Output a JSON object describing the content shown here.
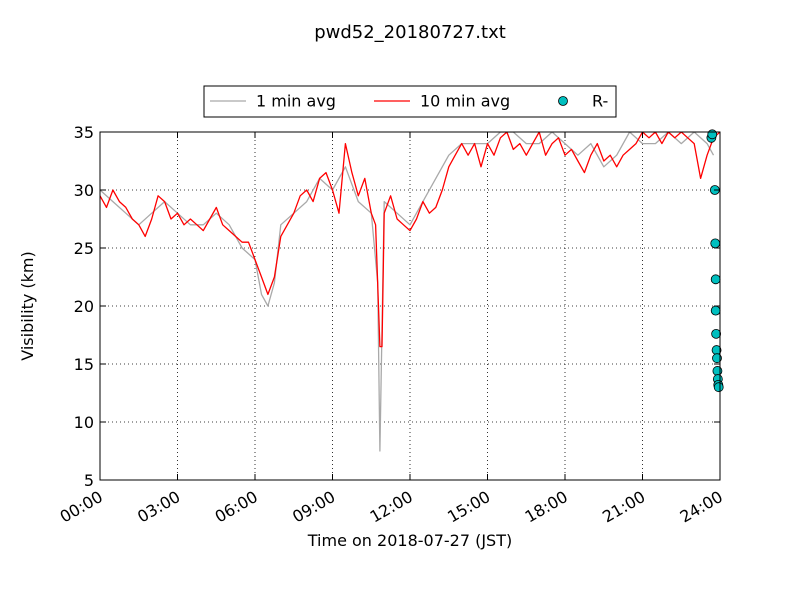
{
  "chart_data": {
    "type": "line",
    "title": "pwd52_20180727.txt",
    "xlabel": "Time on 2018-07-27 (JST)",
    "ylabel": "Visibility (km)",
    "xlim": [
      "00:00",
      "24:00"
    ],
    "ylim": [
      5,
      35
    ],
    "grid": true,
    "legend_placement": "top-center",
    "x_ticks": [
      "00:00",
      "03:00",
      "06:00",
      "09:00",
      "12:00",
      "15:00",
      "18:00",
      "21:00",
      "24:00"
    ],
    "y_ticks": [
      5,
      10,
      15,
      20,
      25,
      30,
      35
    ],
    "series": [
      {
        "name": "1 min avg",
        "color": "#a9a9a9",
        "kind": "line",
        "x": [
          "00:00",
          "00:30",
          "01:00",
          "01:30",
          "02:00",
          "02:30",
          "03:00",
          "03:30",
          "04:00",
          "04:30",
          "05:00",
          "05:30",
          "06:00",
          "06:15",
          "06:30",
          "06:45",
          "07:00",
          "07:30",
          "08:00",
          "08:30",
          "09:00",
          "09:30",
          "10:00",
          "10:30",
          "10:45",
          "10:50",
          "11:00",
          "11:30",
          "12:00",
          "12:30",
          "13:00",
          "13:30",
          "14:00",
          "14:30",
          "15:00",
          "15:30",
          "16:00",
          "16:30",
          "17:00",
          "17:30",
          "18:00",
          "18:30",
          "19:00",
          "19:30",
          "20:00",
          "20:30",
          "21:00",
          "21:30",
          "22:00",
          "22:30",
          "23:00",
          "23:30",
          "23:45"
        ],
        "y": [
          30,
          29,
          28,
          27,
          28,
          29,
          28,
          27,
          27,
          28,
          27,
          25,
          24,
          21,
          20,
          22,
          27,
          28,
          29,
          31,
          30,
          32,
          29,
          28,
          22,
          7.5,
          29,
          28,
          27,
          29,
          31,
          33,
          34,
          34,
          34,
          35,
          35,
          34,
          34,
          35,
          34,
          33,
          34,
          32,
          33,
          35,
          34,
          34,
          35,
          34,
          35,
          34,
          33
        ]
      },
      {
        "name": "10 min avg",
        "color": "#ff0000",
        "kind": "line",
        "x": [
          "00:00",
          "00:15",
          "00:30",
          "00:45",
          "01:00",
          "01:15",
          "01:30",
          "01:45",
          "02:00",
          "02:15",
          "02:30",
          "02:45",
          "03:00",
          "03:15",
          "03:30",
          "03:45",
          "04:00",
          "04:15",
          "04:30",
          "04:45",
          "05:00",
          "05:15",
          "05:30",
          "05:45",
          "06:00",
          "06:15",
          "06:30",
          "06:45",
          "07:00",
          "07:15",
          "07:30",
          "07:45",
          "08:00",
          "08:15",
          "08:30",
          "08:45",
          "09:00",
          "09:15",
          "09:30",
          "09:45",
          "10:00",
          "10:15",
          "10:30",
          "10:40",
          "10:50",
          "10:55",
          "11:00",
          "11:15",
          "11:30",
          "11:45",
          "12:00",
          "12:15",
          "12:30",
          "12:45",
          "13:00",
          "13:15",
          "13:30",
          "13:45",
          "14:00",
          "14:15",
          "14:30",
          "14:45",
          "15:00",
          "15:15",
          "15:30",
          "15:45",
          "16:00",
          "16:15",
          "16:30",
          "16:45",
          "17:00",
          "17:15",
          "17:30",
          "17:45",
          "18:00",
          "18:15",
          "18:30",
          "18:45",
          "19:00",
          "19:15",
          "19:30",
          "19:45",
          "20:00",
          "20:15",
          "20:30",
          "20:45",
          "21:00",
          "21:15",
          "21:30",
          "21:45",
          "22:00",
          "22:15",
          "22:30",
          "22:45",
          "23:00",
          "23:15",
          "23:30",
          "23:45",
          "24:00"
        ],
        "y": [
          29.5,
          28.5,
          30,
          29,
          28.5,
          27.5,
          27,
          26,
          27.5,
          29.5,
          29,
          27.5,
          28,
          27,
          27.5,
          27,
          26.5,
          27.5,
          28.5,
          27,
          26.5,
          26,
          25.5,
          25.5,
          24,
          22.5,
          21,
          22.5,
          26,
          27,
          28,
          29.5,
          30,
          29,
          31,
          31.5,
          30,
          28,
          34,
          31.5,
          29.5,
          31,
          28,
          27,
          16.5,
          16.5,
          28,
          29.5,
          27.5,
          27,
          26.5,
          27.5,
          29,
          28,
          28.5,
          30,
          32,
          33,
          34,
          33,
          34,
          32,
          34,
          33,
          34.5,
          35,
          33.5,
          34,
          33,
          34,
          35,
          33,
          34,
          34.5,
          33,
          33.5,
          32.5,
          31.5,
          33,
          34,
          32.5,
          33,
          32,
          33,
          33.5,
          34,
          35,
          34.5,
          35,
          34,
          35,
          34.5,
          35,
          34.5,
          34,
          31,
          33,
          34.5,
          35
        ]
      },
      {
        "name": "R-",
        "color": "#00bfbf",
        "kind": "marker",
        "x": [
          "23:40",
          "23:42",
          "23:48",
          "23:49",
          "23:50",
          "23:50",
          "23:51",
          "23:52",
          "23:53",
          "23:54",
          "23:55",
          "23:56",
          "23:57"
        ],
        "y": [
          34.5,
          34.8,
          30,
          25.4,
          22.3,
          19.6,
          17.6,
          16.2,
          15.5,
          14.4,
          13.7,
          13.2,
          13
        ]
      }
    ]
  }
}
